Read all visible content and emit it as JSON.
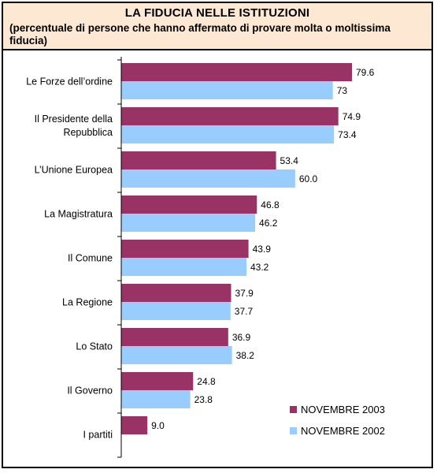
{
  "header": {
    "title": "LA FIDUCIA NELLE ISTITUZIONI",
    "subtitle": "(percentuale di persone che hanno affermato di provare molta o moltissima fiducia)"
  },
  "chart_data": {
    "type": "bar",
    "orientation": "horizontal",
    "categories": [
      [
        "Le Forze dell’ordine"
      ],
      [
        "Il Presidente della",
        "Repubblica"
      ],
      [
        "L’Unione Europea"
      ],
      [
        "La Magistratura"
      ],
      [
        "Il Comune"
      ],
      [
        "La Regione"
      ],
      [
        "Lo Stato"
      ],
      [
        "Il Governo"
      ],
      [
        "I partiti"
      ]
    ],
    "series": [
      {
        "name": "NOVEMBRE 2003",
        "color": "#993366",
        "values": [
          79.6,
          74.9,
          53.4,
          46.8,
          43.9,
          37.9,
          36.9,
          24.8,
          9.0
        ],
        "labels": [
          "79.6",
          "74.9",
          "53.4",
          "46.8",
          "43.9",
          "37.9",
          "36.9",
          "24.8",
          "9.0"
        ]
      },
      {
        "name": "NOVEMBRE 2002",
        "color": "#99ccff",
        "values": [
          73,
          73.4,
          60.0,
          46.2,
          43.2,
          37.7,
          38.2,
          23.8,
          null
        ],
        "labels": [
          "73",
          "73.4",
          "60.0",
          "46.2",
          "43.2",
          "37.7",
          "38.2",
          "23.8",
          ""
        ]
      }
    ],
    "xlim": [
      0,
      100
    ],
    "grid": false,
    "legend": "bottom-right"
  }
}
